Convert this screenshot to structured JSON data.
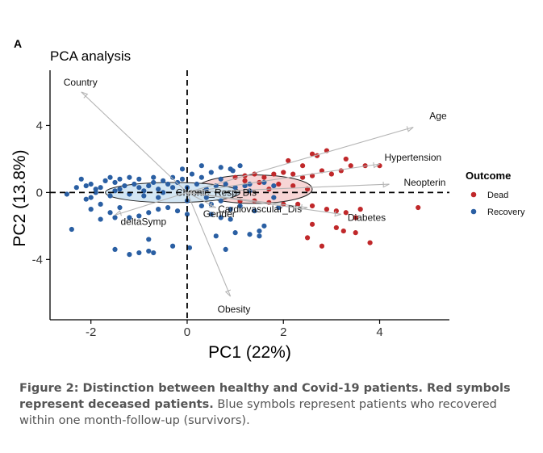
{
  "panel_label": "A",
  "caption": {
    "bold": "Figure 2: Distinction between healthy and Covid-19 patients. Red symbols represent deceased patients.",
    "normal": " Blue symbols represent patients who recovered within one month-follow-up (survivors)."
  },
  "colors": {
    "dead": "#C0282A",
    "recovery": "#2A5FA3",
    "arrow": "#B4B4B4",
    "dead_ellipse": "#F7D5D5",
    "recovery_ellipse": "#D3E6F3"
  },
  "chart_data": {
    "type": "scatter",
    "title": "PCA analysis",
    "xlabel": "PC1 (22%)",
    "ylabel": "PC2 (13.8%)",
    "xlim": [
      -2.85,
      5.45
    ],
    "ylim": [
      -7.6,
      7.3
    ],
    "xticks": [
      -2,
      0,
      2,
      4
    ],
    "yticks": [
      -4,
      0,
      4
    ],
    "legend": {
      "title": "Outcome",
      "entries": [
        "Dead",
        "Recovery"
      ],
      "placement": "right"
    },
    "loadings": [
      {
        "name": "Country",
        "x": -2.2,
        "y": 6.0
      },
      {
        "name": "Age",
        "x": 4.7,
        "y": 3.9
      },
      {
        "name": "Hypertension",
        "x": 4.0,
        "y": 1.7
      },
      {
        "name": "Neopterin",
        "x": 4.2,
        "y": 0.5
      },
      {
        "name": "Chronic_Resp_Dis",
        "x": 0.1,
        "y": 0.15
      },
      {
        "name": "Cardiovascular_Dis",
        "x": 2.5,
        "y": -0.9
      },
      {
        "name": "Diabetes",
        "x": 3.2,
        "y": -1.3
      },
      {
        "name": "Gender",
        "x": 0.6,
        "y": -0.9
      },
      {
        "name": "deltaSymp",
        "x": -1.5,
        "y": -1.35
      },
      {
        "name": "Obesity",
        "x": 0.9,
        "y": -6.2
      }
    ],
    "ellipses": [
      {
        "group": "Dead",
        "cx": 1.4,
        "cy": 0.2,
        "rx": 1.2,
        "ry": 0.85
      },
      {
        "group": "Recovery",
        "cx": -0.3,
        "cy": 0.0,
        "rx": 1.4,
        "ry": 0.6
      }
    ],
    "series": [
      {
        "name": "Dead",
        "points": [
          [
            1.2,
            1.0
          ],
          [
            1.4,
            1.1
          ],
          [
            1.6,
            0.9
          ],
          [
            1.8,
            1.1
          ],
          [
            2.0,
            1.2
          ],
          [
            2.2,
            1.1
          ],
          [
            2.4,
            0.9
          ],
          [
            2.6,
            1.0
          ],
          [
            2.8,
            1.3
          ],
          [
            3.0,
            1.1
          ],
          [
            3.2,
            1.3
          ],
          [
            3.4,
            1.6
          ],
          [
            3.7,
            1.6
          ],
          [
            4.0,
            1.6
          ],
          [
            2.6,
            2.3
          ],
          [
            2.7,
            2.2
          ],
          [
            2.9,
            2.5
          ],
          [
            3.3,
            2.0
          ],
          [
            2.1,
            1.9
          ],
          [
            2.4,
            1.6
          ],
          [
            1.5,
            0.6
          ],
          [
            1.9,
            0.5
          ],
          [
            2.2,
            0.4
          ],
          [
            2.5,
            0.2
          ],
          [
            1.1,
            -0.5
          ],
          [
            1.4,
            -0.5
          ],
          [
            1.7,
            -0.6
          ],
          [
            2.0,
            -0.7
          ],
          [
            2.3,
            -0.7
          ],
          [
            2.6,
            -0.8
          ],
          [
            2.9,
            -1.0
          ],
          [
            3.1,
            -1.1
          ],
          [
            3.3,
            -1.2
          ],
          [
            3.6,
            -1.0
          ],
          [
            4.8,
            -0.9
          ],
          [
            2.6,
            -1.9
          ],
          [
            3.1,
            -2.1
          ],
          [
            3.25,
            -2.3
          ],
          [
            3.5,
            -2.4
          ],
          [
            3.8,
            -3.0
          ],
          [
            2.5,
            -2.7
          ],
          [
            2.8,
            -3.2
          ],
          [
            1.0,
            0.9
          ],
          [
            1.2,
            0.7
          ],
          [
            3.5,
            -1.5
          ],
          [
            1.7,
            0.2
          ]
        ]
      },
      {
        "name": "Recovery",
        "points": [
          [
            -2.4,
            -2.2
          ],
          [
            -2.3,
            0.3
          ],
          [
            -2.1,
            -0.4
          ],
          [
            -2.0,
            -0.3
          ],
          [
            -1.9,
            0.2
          ],
          [
            -1.8,
            -0.7
          ],
          [
            -1.6,
            -0.2
          ],
          [
            -1.5,
            0.1
          ],
          [
            -1.3,
            0.4
          ],
          [
            -1.2,
            -0.1
          ],
          [
            -1.0,
            0.3
          ],
          [
            -0.8,
            0.4
          ],
          [
            -0.6,
            0.2
          ],
          [
            -0.4,
            0.5
          ],
          [
            -0.2,
            0.6
          ],
          [
            0.0,
            0.3
          ],
          [
            0.2,
            0.5
          ],
          [
            0.4,
            0.2
          ],
          [
            0.6,
            0.4
          ],
          [
            0.8,
            0.5
          ],
          [
            1.0,
            0.3
          ],
          [
            1.2,
            0.4
          ],
          [
            1.3,
            0.1
          ],
          [
            -1.4,
            0.2
          ],
          [
            -1.1,
            0.5
          ],
          [
            -0.9,
            0.1
          ],
          [
            -0.7,
            0.6
          ],
          [
            -0.5,
            0.0
          ],
          [
            -0.3,
            0.3
          ],
          [
            -0.1,
            0.8
          ],
          [
            0.1,
            1.1
          ],
          [
            0.3,
            0.9
          ],
          [
            0.5,
            1.2
          ],
          [
            0.7,
            0.8
          ],
          [
            0.9,
            1.4
          ],
          [
            1.1,
            1.6
          ],
          [
            0.95,
            1.3
          ],
          [
            0.7,
            1.5
          ],
          [
            0.3,
            1.6
          ],
          [
            -0.1,
            1.4
          ],
          [
            -0.3,
            0.9
          ],
          [
            -0.5,
            0.7
          ],
          [
            -0.7,
            0.9
          ],
          [
            -1.0,
            0.8
          ],
          [
            -1.2,
            0.9
          ],
          [
            -1.5,
            0.6
          ],
          [
            -1.7,
            0.7
          ],
          [
            -2.0,
            0.5
          ],
          [
            -2.2,
            0.8
          ],
          [
            -1.8,
            0.3
          ],
          [
            -1.6,
            0.9
          ],
          [
            -1.4,
            0.8
          ],
          [
            0.0,
            -0.5
          ],
          [
            0.3,
            -0.8
          ],
          [
            0.5,
            -0.7
          ],
          [
            0.7,
            -0.5
          ],
          [
            0.9,
            -1.0
          ],
          [
            1.1,
            -0.8
          ],
          [
            0.5,
            -1.3
          ],
          [
            0.7,
            -1.5
          ],
          [
            0.9,
            -1.6
          ],
          [
            0.6,
            -2.6
          ],
          [
            1.0,
            -2.4
          ],
          [
            1.3,
            -2.5
          ],
          [
            1.5,
            -2.3
          ],
          [
            1.5,
            -2.6
          ],
          [
            1.6,
            -2.0
          ],
          [
            0.8,
            -3.4
          ],
          [
            -0.8,
            -2.8
          ],
          [
            -0.3,
            -3.2
          ],
          [
            0.05,
            -3.3
          ],
          [
            -1.0,
            -3.6
          ],
          [
            -0.8,
            -3.5
          ],
          [
            -0.7,
            -3.6
          ],
          [
            -1.5,
            -3.4
          ],
          [
            -1.2,
            -3.7
          ],
          [
            -1.5,
            -1.5
          ],
          [
            -1.2,
            -1.5
          ],
          [
            -1.0,
            -1.4
          ],
          [
            -0.8,
            -1.2
          ],
          [
            -0.6,
            -1.0
          ],
          [
            -0.4,
            -0.9
          ],
          [
            -0.2,
            -1.1
          ],
          [
            0.0,
            -1.3
          ],
          [
            -1.8,
            -1.6
          ],
          [
            -1.6,
            -1.2
          ],
          [
            -1.4,
            -0.9
          ],
          [
            -2.0,
            -1.0
          ],
          [
            -1.9,
            0.0
          ],
          [
            -2.1,
            0.4
          ],
          [
            -0.9,
            -0.2
          ],
          [
            -0.6,
            -0.3
          ],
          [
            1.6,
            0.6
          ],
          [
            1.8,
            0.4
          ],
          [
            1.8,
            -0.3
          ],
          [
            1.9,
            -0.9
          ],
          [
            1.4,
            -1.1
          ],
          [
            1.3,
            0.5
          ],
          [
            0.4,
            -0.3
          ],
          [
            -2.5,
            -0.1
          ]
        ]
      }
    ]
  }
}
